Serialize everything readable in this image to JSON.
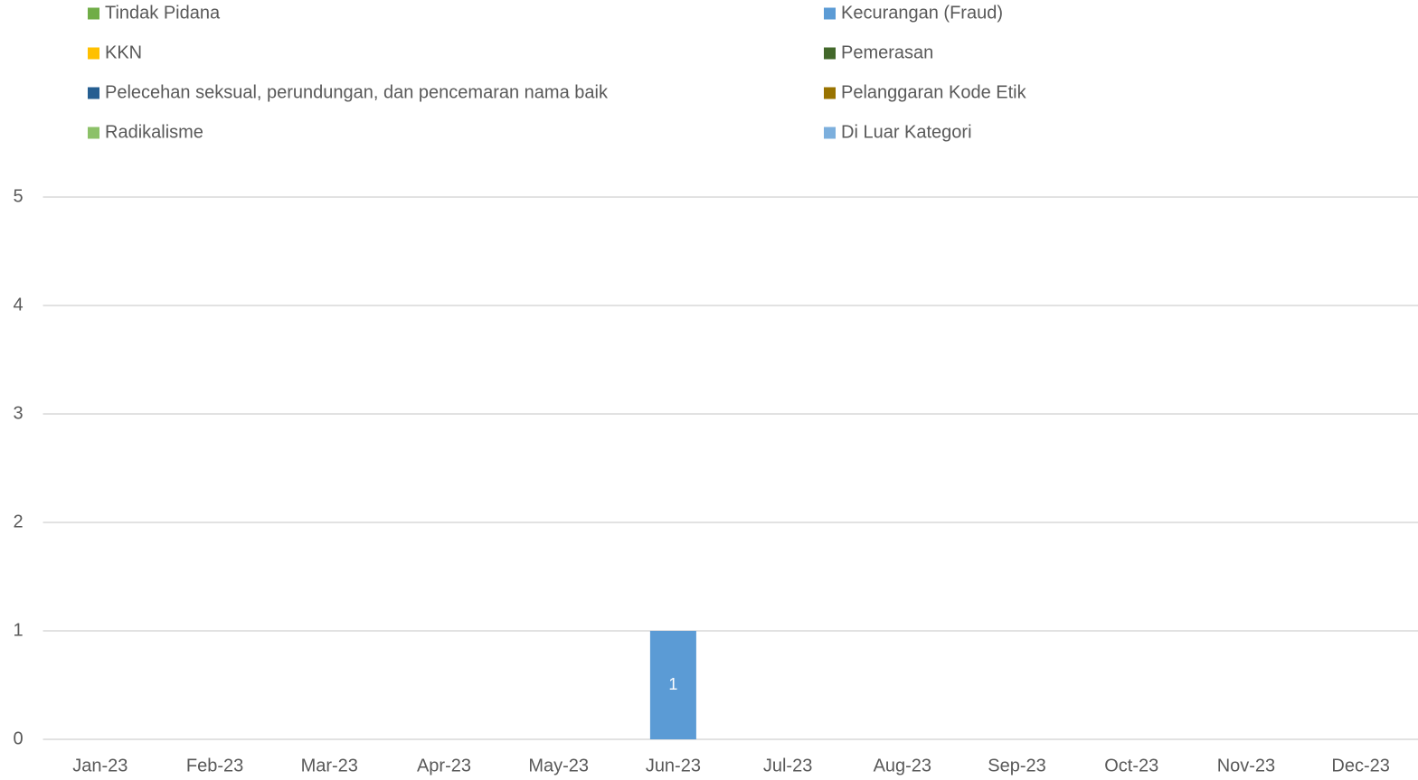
{
  "chart_data": {
    "type": "stacked_bar",
    "categories": [
      "Jan-23",
      "Feb-23",
      "Mar-23",
      "Apr-23",
      "May-23",
      "Jun-23",
      "Jul-23",
      "Aug-23",
      "Sep-23",
      "Oct-23",
      "Nov-23",
      "Dec-23"
    ],
    "series": [
      {
        "name": "Tindak Pidana",
        "color": "#70ad47",
        "values": [
          0,
          0,
          0,
          0,
          0,
          0,
          0,
          0,
          0,
          0,
          0,
          0
        ]
      },
      {
        "name": "Kecurangan (Fraud)",
        "color": "#5b9bd5",
        "values": [
          0,
          0,
          0,
          0,
          0,
          1,
          0,
          0,
          0,
          0,
          0,
          0
        ]
      },
      {
        "name": "KKN",
        "color": "#ffc000",
        "values": [
          0,
          0,
          0,
          0,
          0,
          0,
          0,
          0,
          0,
          0,
          0,
          0
        ]
      },
      {
        "name": "Pemerasan",
        "color": "#43682b",
        "values": [
          0,
          0,
          0,
          0,
          0,
          0,
          0,
          0,
          0,
          0,
          0,
          0
        ]
      },
      {
        "name": "Pelecehan seksual, perundungan, dan pencemaran nama baik",
        "color": "#255e91",
        "values": [
          0,
          0,
          0,
          0,
          0,
          0,
          0,
          0,
          0,
          0,
          0,
          0
        ]
      },
      {
        "name": "Pelanggaran Kode Etik",
        "color": "#997300",
        "values": [
          0,
          0,
          0,
          0,
          0,
          0,
          0,
          0,
          0,
          0,
          0,
          0
        ]
      },
      {
        "name": "Radikalisme",
        "color": "#8cc168",
        "values": [
          0,
          0,
          0,
          0,
          0,
          0,
          0,
          0,
          0,
          0,
          0,
          0
        ]
      },
      {
        "name": "Di Luar Kategori",
        "color": "#7cafdd",
        "values": [
          0,
          0,
          0,
          0,
          0,
          0,
          0,
          0,
          0,
          0,
          0,
          0
        ]
      }
    ],
    "ylim": [
      0,
      5
    ],
    "yticks": [
      0,
      1,
      2,
      3,
      4,
      5
    ],
    "grid": true,
    "legend": "top"
  }
}
